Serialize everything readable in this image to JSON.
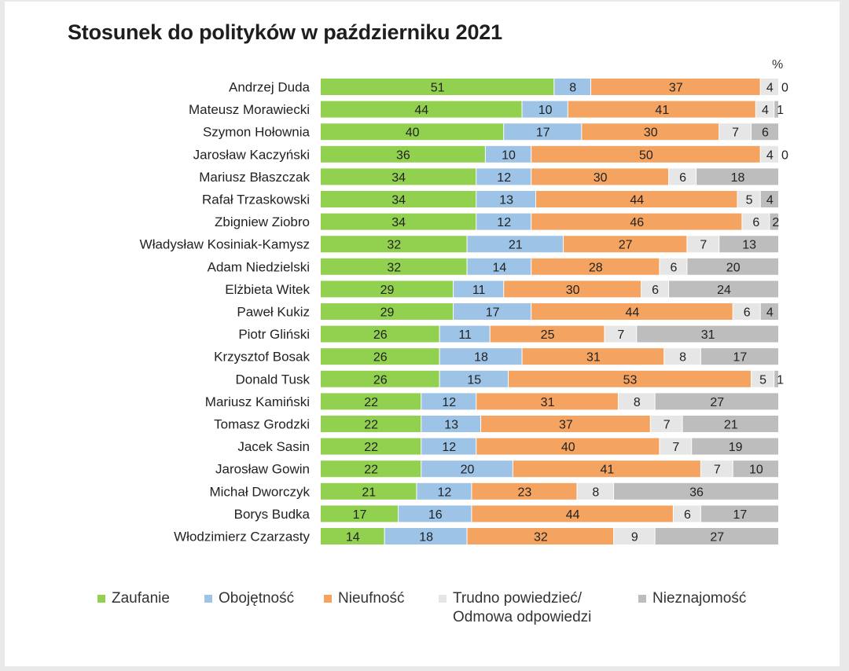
{
  "chart_data": {
    "type": "bar",
    "orientation": "horizontal",
    "stacked": true,
    "title": "Stosunek do polityków w październiku 2021",
    "unit": "%",
    "xlim": [
      0,
      100
    ],
    "categories": [
      "Andrzej Duda",
      "Mateusz Morawiecki",
      "Szymon Hołownia",
      "Jarosław Kaczyński",
      "Mariusz Błaszczak",
      "Rafał Trzaskowski",
      "Zbigniew Ziobro",
      "Władysław Kosiniak-Kamysz",
      "Adam Niedzielski",
      "Elżbieta Witek",
      "Paweł Kukiz",
      "Piotr Gliński",
      "Krzysztof Bosak",
      "Donald Tusk",
      "Mariusz Kamiński",
      "Tomasz Grodzki",
      "Jacek Sasin",
      "Jarosław Gowin",
      "Michał Dworczyk",
      "Borys Budka",
      "Włodzimierz Czarzasty"
    ],
    "series": [
      {
        "name": "Zaufanie",
        "color": "#92d050",
        "values": [
          51,
          44,
          40,
          36,
          34,
          34,
          34,
          32,
          32,
          29,
          29,
          26,
          26,
          26,
          22,
          22,
          22,
          22,
          21,
          17,
          14
        ]
      },
      {
        "name": "Obojętność",
        "color": "#9dc3e6",
        "values": [
          8,
          10,
          17,
          10,
          12,
          13,
          12,
          21,
          14,
          11,
          17,
          11,
          18,
          15,
          12,
          13,
          12,
          20,
          12,
          16,
          18
        ]
      },
      {
        "name": "Nieufność",
        "color": "#f4a460",
        "values": [
          37,
          41,
          30,
          50,
          30,
          44,
          46,
          27,
          28,
          30,
          44,
          25,
          31,
          53,
          31,
          37,
          40,
          41,
          23,
          44,
          32
        ]
      },
      {
        "name": "Trudno powiedzieć/ Odmowa odpowiedzi",
        "color": "#e6e6e6",
        "values": [
          4,
          4,
          7,
          4,
          6,
          5,
          6,
          7,
          6,
          6,
          6,
          7,
          8,
          5,
          8,
          7,
          7,
          7,
          8,
          6,
          9
        ]
      },
      {
        "name": "Nieznajomość",
        "color": "#bdbdbd",
        "values": [
          0,
          1,
          6,
          0,
          18,
          4,
          2,
          13,
          20,
          24,
          4,
          31,
          17,
          1,
          27,
          21,
          19,
          10,
          36,
          17,
          27
        ]
      }
    ],
    "legend": {
      "position": "bottom",
      "labels": [
        "Zaufanie",
        "Obojętność",
        "Nieufność",
        "Trudno powiedzieć/",
        "Odmowa odpowiedzi",
        "Nieznajomość"
      ]
    }
  }
}
